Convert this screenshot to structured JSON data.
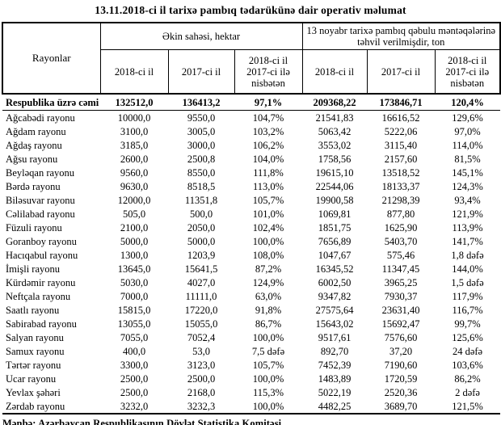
{
  "title": "13.11.2018-ci il tarixə pambıq tədarükünə dair operativ məlumat",
  "footer": "Mənbə: Azərbaycan Respublikasının Dövlət Statistika Komitəsi",
  "table": {
    "corner_header": "Rayonlar",
    "group_headers": {
      "area": "Əkin sahəsi, hektar",
      "delivered": "13 noyabr tarixə pambıq qəbulu məntəqələrinə təhvil verilmişdir, ton"
    },
    "sub_headers": [
      "2018-ci il",
      "2017-ci il",
      "2018-ci il\n2017-ci ilə\nnisbətən",
      "2018-ci il",
      "2017-ci il",
      "2018-ci il\n2017-ci ilə\nnisbətən"
    ],
    "total_row": {
      "label": "Respublika üzrə cəmi",
      "values": [
        "132512,0",
        "136413,2",
        "97,1%",
        "209368,22",
        "173846,71",
        "120,4%"
      ]
    },
    "rows": [
      {
        "label": "Ağcabədi rayonu",
        "values": [
          "10000,0",
          "9550,0",
          "104,7%",
          "21541,83",
          "16616,52",
          "129,6%"
        ]
      },
      {
        "label": "Ağdam rayonu",
        "values": [
          "3100,0",
          "3005,0",
          "103,2%",
          "5063,42",
          "5222,06",
          "97,0%"
        ]
      },
      {
        "label": "Ağdaş rayonu",
        "values": [
          "3185,0",
          "3000,0",
          "106,2%",
          "3553,02",
          "3115,40",
          "114,0%"
        ]
      },
      {
        "label": "Ağsu rayonu",
        "values": [
          "2600,0",
          "2500,8",
          "104,0%",
          "1758,56",
          "2157,60",
          "81,5%"
        ]
      },
      {
        "label": "Beyləqan rayonu",
        "values": [
          "9560,0",
          "8550,0",
          "111,8%",
          "19615,10",
          "13518,52",
          "145,1%"
        ]
      },
      {
        "label": "Bərdə rayonu",
        "values": [
          "9630,0",
          "8518,5",
          "113,0%",
          "22544,06",
          "18133,37",
          "124,3%"
        ]
      },
      {
        "label": "Biləsuvar rayonu",
        "values": [
          "12000,0",
          "11351,8",
          "105,7%",
          "19900,58",
          "21298,39",
          "93,4%"
        ]
      },
      {
        "label": "Cəlilabad rayonu",
        "values": [
          "505,0",
          "500,0",
          "101,0%",
          "1069,81",
          "877,80",
          "121,9%"
        ]
      },
      {
        "label": "Füzuli rayonu",
        "values": [
          "2100,0",
          "2050,0",
          "102,4%",
          "1851,75",
          "1625,90",
          "113,9%"
        ]
      },
      {
        "label": "Goranboy rayonu",
        "values": [
          "5000,0",
          "5000,0",
          "100,0%",
          "7656,89",
          "5403,70",
          "141,7%"
        ]
      },
      {
        "label": "Hacıqabul rayonu",
        "values": [
          "1300,0",
          "1203,9",
          "108,0%",
          "1047,67",
          "575,46",
          "1,8 dəfə"
        ]
      },
      {
        "label": "İmişli rayonu",
        "values": [
          "13645,0",
          "15641,5",
          "87,2%",
          "16345,52",
          "11347,45",
          "144,0%"
        ]
      },
      {
        "label": "Kürdəmir rayonu",
        "values": [
          "5030,0",
          "4027,0",
          "124,9%",
          "6002,50",
          "3965,25",
          "1,5 dəfə"
        ]
      },
      {
        "label": "Neftçala rayonu",
        "values": [
          "7000,0",
          "11111,0",
          "63,0%",
          "9347,82",
          "7930,37",
          "117,9%"
        ]
      },
      {
        "label": "Saatlı rayonu",
        "values": [
          "15815,0",
          "17220,0",
          "91,8%",
          "27575,64",
          "23631,40",
          "116,7%"
        ]
      },
      {
        "label": "Sabirabad rayonu",
        "values": [
          "13055,0",
          "15055,0",
          "86,7%",
          "15643,02",
          "15692,47",
          "99,7%"
        ]
      },
      {
        "label": "Salyan rayonu",
        "values": [
          "7055,0",
          "7052,4",
          "100,0%",
          "9517,61",
          "7576,60",
          "125,6%"
        ]
      },
      {
        "label": "Samux rayonu",
        "values": [
          "400,0",
          "53,0",
          "7,5 dəfə",
          "892,70",
          "37,20",
          "24 dəfə"
        ]
      },
      {
        "label": "Tərtər rayonu",
        "values": [
          "3300,0",
          "3123,0",
          "105,7%",
          "7452,39",
          "7190,60",
          "103,6%"
        ]
      },
      {
        "label": "Ucar rayonu",
        "values": [
          "2500,0",
          "2500,0",
          "100,0%",
          "1483,89",
          "1720,59",
          "86,2%"
        ]
      },
      {
        "label": "Yevlax şəhəri",
        "values": [
          "2500,0",
          "2168,0",
          "115,3%",
          "5022,19",
          "2520,36",
          "2 dəfə"
        ]
      },
      {
        "label": "Zərdab rayonu",
        "values": [
          "3232,0",
          "3232,3",
          "100,0%",
          "4482,25",
          "3689,70",
          "121,5%"
        ]
      }
    ]
  }
}
